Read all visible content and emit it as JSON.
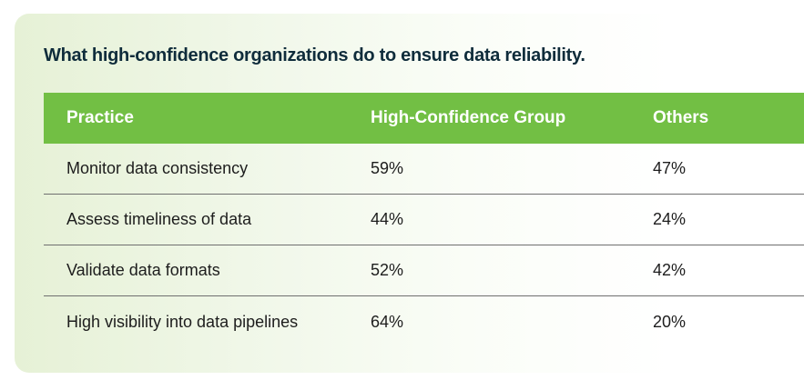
{
  "title": "What high-confidence organizations do to ensure data reliability.",
  "colors": {
    "header_bg": "#72bf44",
    "title_text": "#0f2c3b",
    "card_gradient_start": "#e6f1d6"
  },
  "chart_data": {
    "type": "table",
    "title": "What high-confidence organizations do to ensure data reliability.",
    "columns": [
      "Practice",
      "High-Confidence Group",
      "Others"
    ],
    "rows": [
      [
        "Monitor data consistency",
        "59%",
        "47%"
      ],
      [
        "Assess timeliness of data",
        "44%",
        "24%"
      ],
      [
        "Validate data formats",
        "52%",
        "42%"
      ],
      [
        "High visibility into data pipelines",
        "64%",
        "20%"
      ]
    ]
  }
}
